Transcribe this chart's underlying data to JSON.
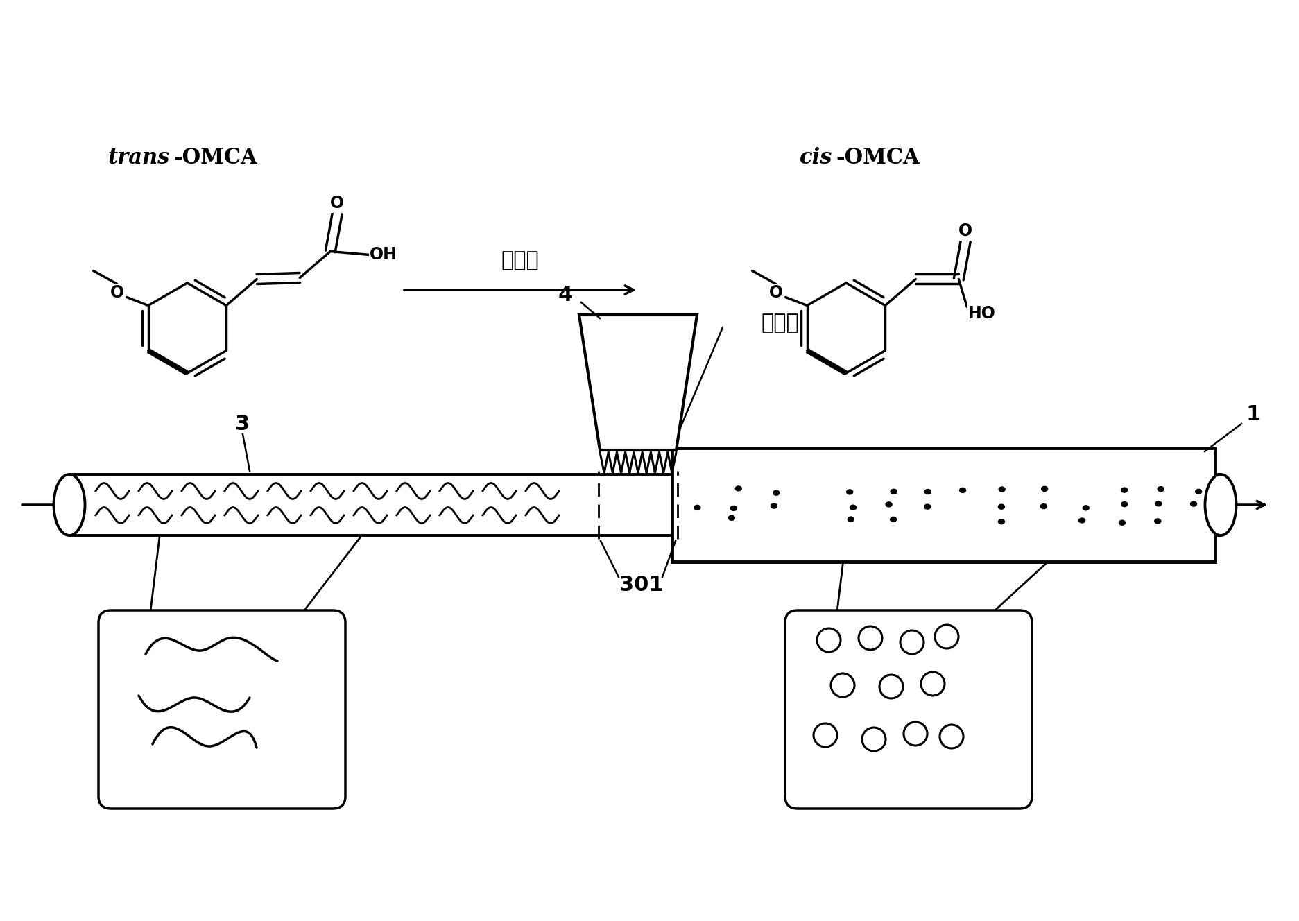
{
  "bg_color": "#ffffff",
  "trans_label_italic": "trans",
  "trans_label_normal": "-OMCA",
  "cis_label_italic": "cis",
  "cis_label_normal": "-OMCA",
  "uv_label_arrow": "紫外光",
  "uv_label_device": "紫外光",
  "label_1": "1",
  "label_3": "3",
  "label_4": "4",
  "label_301": "301"
}
